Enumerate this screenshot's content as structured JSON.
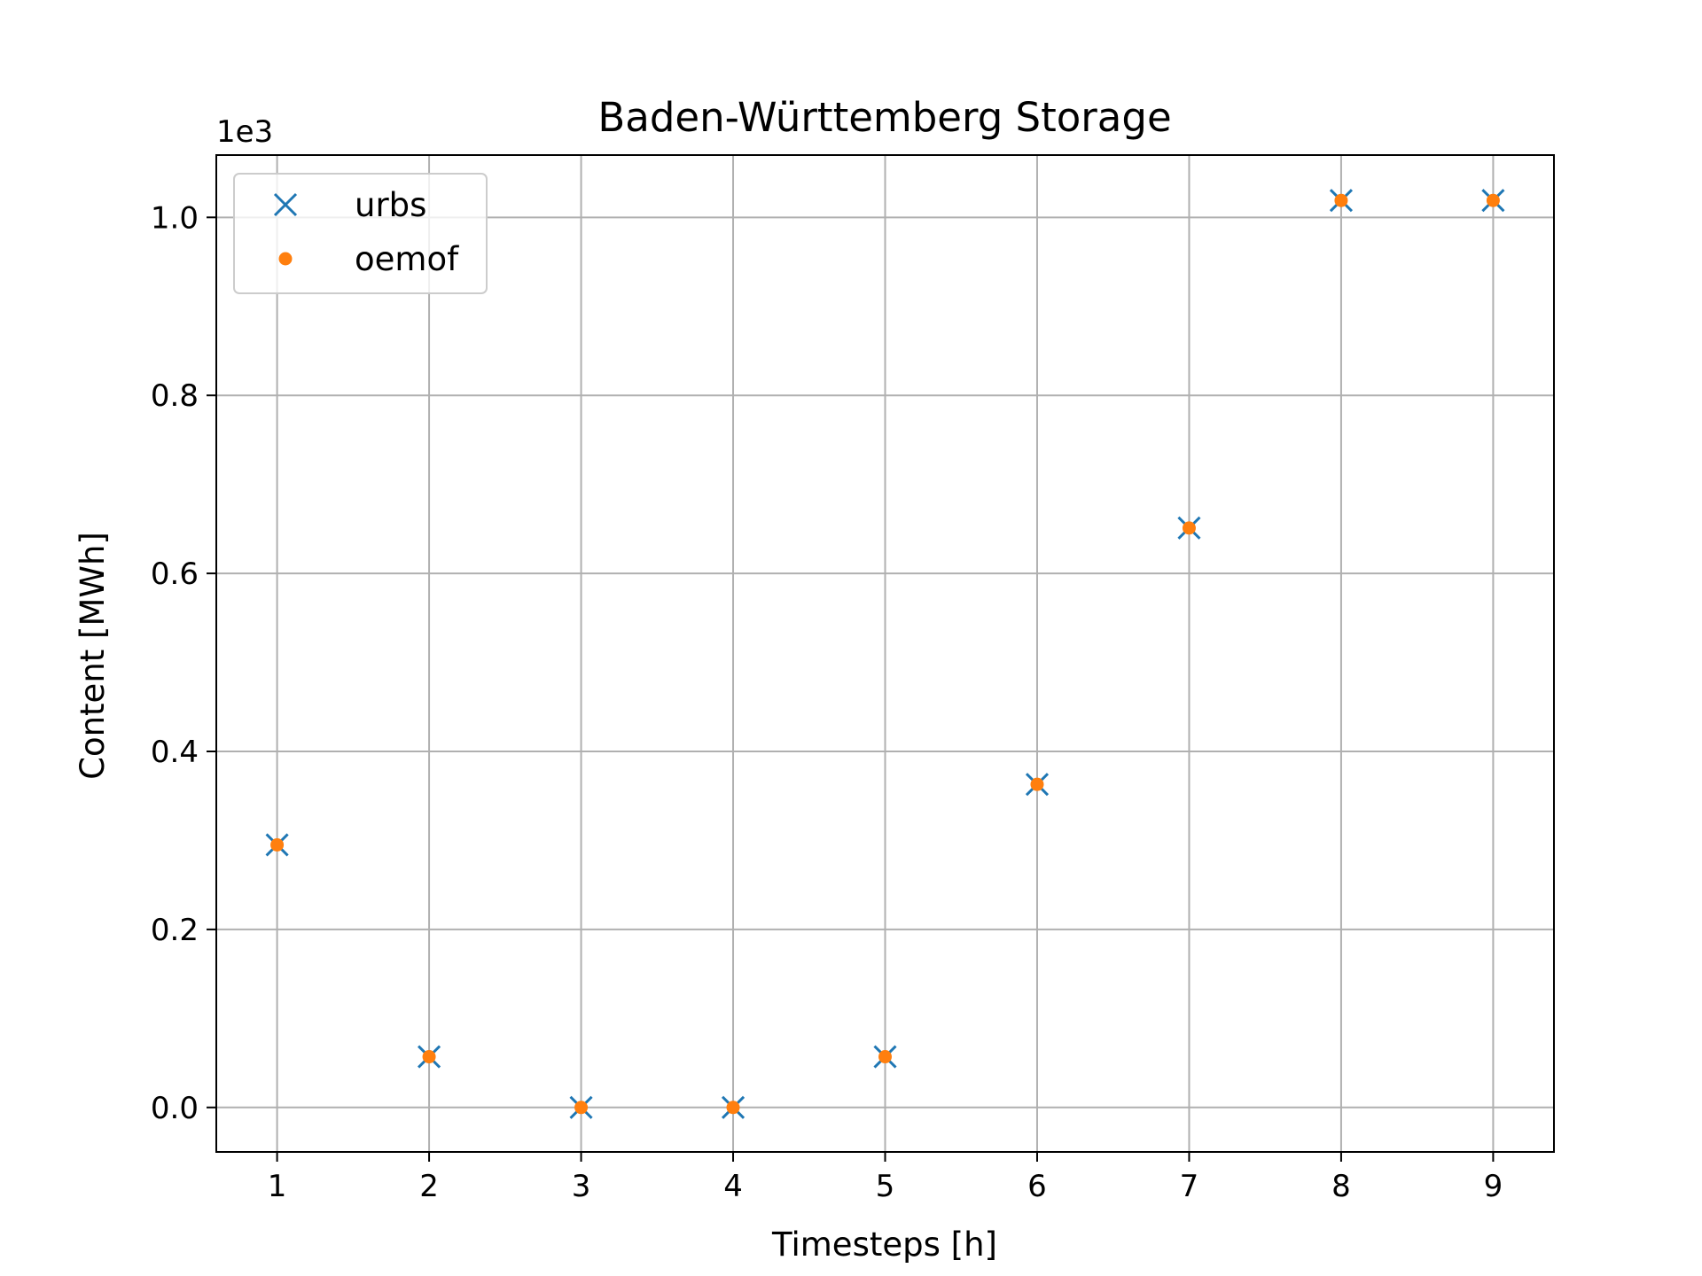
{
  "chart_data": {
    "type": "scatter",
    "title": "Baden-Württemberg Storage",
    "xlabel": "Timesteps [h]",
    "ylabel": "Content [MWh]",
    "y_offset_label": "1e3",
    "x": [
      1,
      2,
      3,
      4,
      5,
      6,
      7,
      8,
      9
    ],
    "xlim": [
      0.6,
      9.4
    ],
    "ylim": [
      -50,
      1070
    ],
    "x_ticks": [
      1,
      2,
      3,
      4,
      5,
      6,
      7,
      8,
      9
    ],
    "x_tick_labels": [
      "1",
      "2",
      "3",
      "4",
      "5",
      "6",
      "7",
      "8",
      "9"
    ],
    "y_ticks": [
      0,
      200,
      400,
      600,
      800,
      1000
    ],
    "y_tick_labels": [
      "0.0",
      "0.2",
      "0.4",
      "0.6",
      "0.8",
      "1.0"
    ],
    "grid": true,
    "legend_position": "top-left",
    "series": [
      {
        "name": "urbs",
        "marker": "x",
        "color": "#1f77b4",
        "values": [
          295,
          57,
          0,
          0,
          57,
          363,
          651,
          1019,
          1019
        ]
      },
      {
        "name": "oemof",
        "marker": "dot",
        "color": "#ff7f0e",
        "values": [
          295,
          57,
          0,
          0,
          57,
          363,
          651,
          1019,
          1019
        ]
      }
    ]
  }
}
